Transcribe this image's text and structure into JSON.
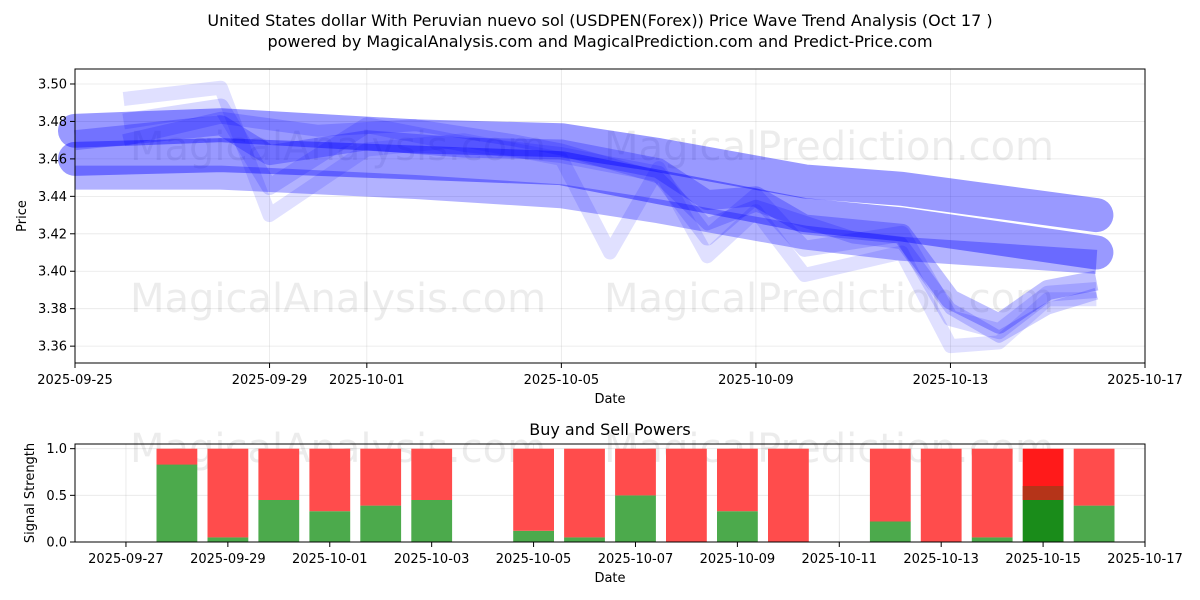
{
  "chart_data": [
    {
      "type": "line",
      "title_line1": "United States dollar With Peruvian nuevo sol (USDPEN(Forex)) Price Wave Trend Analysis (Oct 17 )",
      "title_line2": "powered by MagicalAnalysis.com and MagicalPrediction.com and Predict-Price.com",
      "xlabel": "Date",
      "ylabel": "Price",
      "x_range": [
        "2025-09-25",
        "2025-10-17"
      ],
      "ylim": [
        3.351,
        3.508
      ],
      "x_ticks": [
        "2025-09-25",
        "2025-09-29",
        "2025-10-01",
        "2025-10-05",
        "2025-10-09",
        "2025-10-13",
        "2025-10-17"
      ],
      "y_ticks": [
        3.36,
        3.38,
        3.4,
        3.42,
        3.44,
        3.46,
        3.48,
        3.5
      ],
      "y_tick_labels": [
        "3.36",
        "3.38",
        "3.40",
        "3.42",
        "3.44",
        "3.46",
        "3.48",
        "3.50"
      ],
      "grid": true,
      "color": "#0000ff",
      "watermarks": [
        "MagicalAnalysis.com",
        "MagicalPrediction.com"
      ],
      "series": [
        {
          "x": [
            "2025-09-25",
            "2025-09-28",
            "2025-10-02",
            "2025-10-05",
            "2025-10-07",
            "2025-10-10",
            "2025-10-12",
            "2025-10-16"
          ],
          "y": [
            3.475,
            3.478,
            3.472,
            3.47,
            3.462,
            3.448,
            3.444,
            3.43
          ]
        },
        {
          "x": [
            "2025-09-25",
            "2025-09-28",
            "2025-10-02",
            "2025-10-05",
            "2025-10-07",
            "2025-10-10",
            "2025-10-12",
            "2025-10-16"
          ],
          "y": [
            3.46,
            3.462,
            3.458,
            3.455,
            3.445,
            3.43,
            3.425,
            3.41
          ]
        },
        {
          "x": [
            "2025-09-25",
            "2025-09-28",
            "2025-10-02",
            "2025-10-05",
            "2025-10-07",
            "2025-10-10",
            "2025-10-12",
            "2025-10-16"
          ],
          "y": [
            3.45,
            3.45,
            3.445,
            3.44,
            3.432,
            3.418,
            3.412,
            3.405
          ]
        },
        {
          "x": [
            "2025-09-25",
            "2025-09-28",
            "2025-09-29",
            "2025-10-01",
            "2025-10-03",
            "2025-10-05",
            "2025-10-07",
            "2025-10-08",
            "2025-10-09",
            "2025-10-10",
            "2025-10-12",
            "2025-10-13",
            "2025-10-14",
            "2025-10-15",
            "2025-10-16"
          ],
          "y": [
            3.47,
            3.478,
            3.462,
            3.47,
            3.466,
            3.465,
            3.455,
            3.438,
            3.44,
            3.425,
            3.42,
            3.385,
            3.372,
            3.39,
            3.395
          ]
        },
        {
          "x": [
            "2025-09-26",
            "2025-09-28",
            "2025-09-29",
            "2025-10-01",
            "2025-10-03",
            "2025-10-05",
            "2025-10-06",
            "2025-10-07",
            "2025-10-08",
            "2025-10-09",
            "2025-10-10",
            "2025-10-12",
            "2025-10-13",
            "2025-10-14",
            "2025-10-15",
            "2025-10-16"
          ],
          "y": [
            3.492,
            3.498,
            3.43,
            3.465,
            3.47,
            3.46,
            3.41,
            3.455,
            3.408,
            3.432,
            3.398,
            3.41,
            3.36,
            3.362,
            3.385,
            3.385
          ]
        },
        {
          "x": [
            "2025-09-26",
            "2025-09-28",
            "2025-09-29",
            "2025-10-01",
            "2025-10-03",
            "2025-10-05",
            "2025-10-07",
            "2025-10-08",
            "2025-10-09",
            "2025-10-10",
            "2025-10-12",
            "2025-10-13",
            "2025-10-14",
            "2025-10-15",
            "2025-10-16"
          ],
          "y": [
            3.48,
            3.488,
            3.445,
            3.478,
            3.468,
            3.462,
            3.452,
            3.418,
            3.44,
            3.412,
            3.42,
            3.375,
            3.368,
            3.388,
            3.39
          ]
        },
        {
          "x": [
            "2025-09-26",
            "2025-09-28",
            "2025-09-30",
            "2025-10-02",
            "2025-10-04",
            "2025-10-05",
            "2025-10-07",
            "2025-10-08",
            "2025-10-09",
            "2025-10-11",
            "2025-10-12",
            "2025-10-13",
            "2025-10-14",
            "2025-10-15",
            "2025-10-16"
          ],
          "y": [
            3.47,
            3.482,
            3.475,
            3.478,
            3.47,
            3.465,
            3.45,
            3.425,
            3.435,
            3.418,
            3.415,
            3.38,
            3.365,
            3.38,
            3.388
          ]
        }
      ]
    },
    {
      "type": "bar",
      "title": "Buy and Sell Powers",
      "xlabel": "Date",
      "ylabel": "Signal Strength",
      "x_range": [
        "2025-09-26",
        "2025-10-17"
      ],
      "ylim": [
        0,
        1.05
      ],
      "x_ticks": [
        "2025-09-27",
        "2025-09-29",
        "2025-10-01",
        "2025-10-03",
        "2025-10-05",
        "2025-10-07",
        "2025-10-09",
        "2025-10-11",
        "2025-10-13",
        "2025-10-15",
        "2025-10-17"
      ],
      "y_ticks": [
        0,
        0.5,
        1.0
      ],
      "y_tick_labels": [
        "0.0",
        "0.5",
        "1.0"
      ],
      "grid": true,
      "buy_color": "#4caa4c",
      "sell_color": "#ff4c4c",
      "today_buy_color": "#1a8c1a",
      "today_sell_color": "#ff1a1a",
      "dates": [
        "2025-09-28",
        "2025-09-29",
        "2025-09-30",
        "2025-10-01",
        "2025-10-02",
        "2025-10-03",
        "2025-10-05",
        "2025-10-06",
        "2025-10-07",
        "2025-10-08",
        "2025-10-09",
        "2025-10-10",
        "2025-10-12",
        "2025-10-13",
        "2025-10-14",
        "2025-10-15",
        "2025-10-16"
      ],
      "buy": [
        0.83,
        0.05,
        0.45,
        0.33,
        0.39,
        0.45,
        0.12,
        0.05,
        0.5,
        0.0,
        0.33,
        0.0,
        0.22,
        0.0,
        0.05,
        0.45,
        0.39
      ],
      "sell": [
        0.17,
        0.95,
        0.55,
        0.67,
        0.61,
        0.55,
        0.88,
        0.95,
        0.5,
        1.0,
        0.67,
        1.0,
        0.78,
        1.0,
        0.95,
        0.55,
        0.61
      ],
      "today_date": "2025-10-15",
      "today_overlap": 0.15,
      "watermarks": [
        "MagicalAnalysis.com",
        "MagicalPrediction.com"
      ]
    }
  ]
}
